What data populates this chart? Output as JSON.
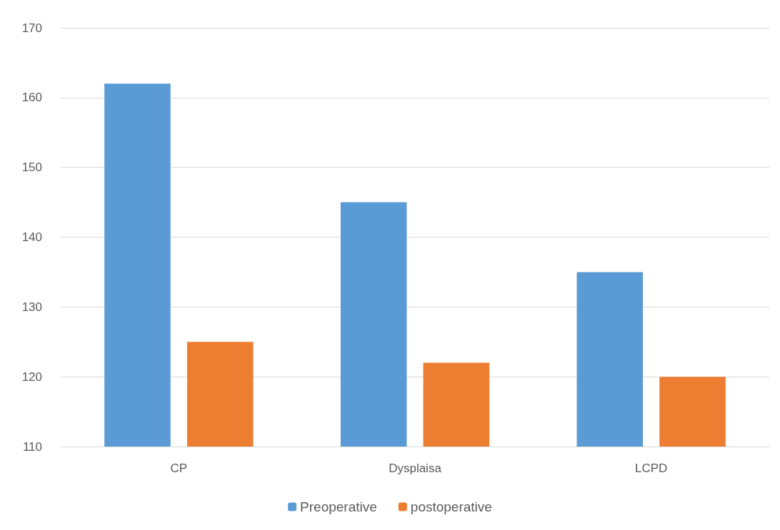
{
  "chart_data": {
    "type": "bar",
    "categories": [
      "CP",
      "Dysplaisa",
      "LCPD"
    ],
    "series": [
      {
        "name": "Preoperative",
        "color": "#5b9bd5",
        "values": [
          162,
          145,
          135
        ]
      },
      {
        "name": "postoperative",
        "color": "#ed7d31",
        "values": [
          125,
          122,
          120
        ]
      }
    ],
    "ylim": [
      110,
      170
    ],
    "yticks": [
      110,
      120,
      130,
      140,
      150,
      160,
      170
    ],
    "grid": "y",
    "legend": "bottom"
  }
}
